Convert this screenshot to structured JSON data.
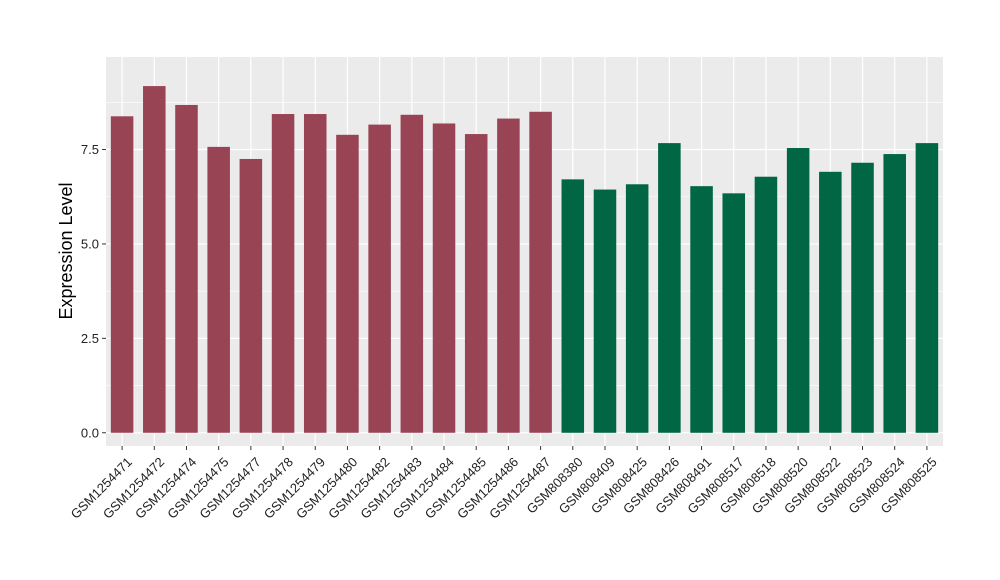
{
  "chart_data": {
    "type": "bar",
    "title": "",
    "xlabel": "",
    "ylabel": "Expression Level",
    "ylim": [
      -0.35,
      9.95
    ],
    "yticks": [
      0.0,
      2.5,
      5.0,
      7.5
    ],
    "ytick_labels": [
      "0.0",
      "2.5",
      "5.0",
      "7.5"
    ],
    "grid": true,
    "colors": {
      "group_1": "#994455",
      "group_2": "#006644",
      "panel": "#ebebeb",
      "grid": "#ffffff"
    },
    "categories": [
      "GSM1254471",
      "GSM1254472",
      "GSM1254474",
      "GSM1254475",
      "GSM1254477",
      "GSM1254478",
      "GSM1254479",
      "GSM1254480",
      "GSM1254482",
      "GSM1254483",
      "GSM1254484",
      "GSM1254485",
      "GSM1254486",
      "GSM1254487",
      "GSM808380",
      "GSM808409",
      "GSM808425",
      "GSM808426",
      "GSM808491",
      "GSM808517",
      "GSM808518",
      "GSM808520",
      "GSM808522",
      "GSM808523",
      "GSM808524",
      "GSM808525"
    ],
    "values": [
      8.38,
      9.18,
      8.68,
      7.57,
      7.25,
      8.44,
      8.44,
      7.89,
      8.16,
      8.42,
      8.19,
      7.91,
      8.32,
      8.5,
      6.71,
      6.44,
      6.58,
      7.67,
      6.53,
      6.34,
      6.78,
      7.54,
      6.91,
      7.15,
      7.38,
      7.67
    ],
    "group": [
      "1",
      "1",
      "1",
      "1",
      "1",
      "1",
      "1",
      "1",
      "1",
      "1",
      "1",
      "1",
      "1",
      "1",
      "2",
      "2",
      "2",
      "2",
      "2",
      "2",
      "2",
      "2",
      "2",
      "2",
      "2",
      "2"
    ]
  }
}
